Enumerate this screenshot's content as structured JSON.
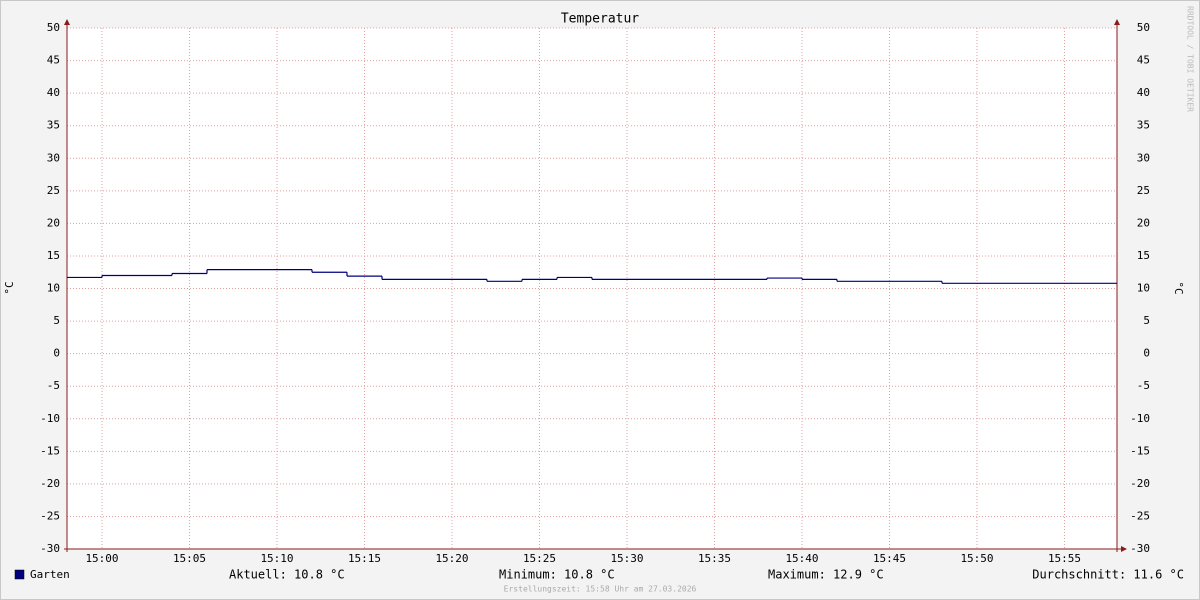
{
  "chart_data": {
    "type": "step",
    "title": "Temperatur",
    "y_label": "°C",
    "watermark": "RRDTOOL / TOBI OETIKER",
    "x": [
      "14:58",
      "15:00",
      "15:04",
      "15:06",
      "15:12",
      "15:14",
      "15:16",
      "15:22",
      "15:24",
      "15:26",
      "15:28",
      "15:38",
      "15:40",
      "15:42",
      "15:48"
    ],
    "xlim": [
      "14:58",
      "15:58"
    ],
    "xticks": [
      "15:00",
      "15:05",
      "15:10",
      "15:15",
      "15:20",
      "15:25",
      "15:30",
      "15:35",
      "15:40",
      "15:45",
      "15:50",
      "15:55"
    ],
    "ylim": [
      -30,
      50
    ],
    "yticks": [
      -30,
      -25,
      -20,
      -15,
      -10,
      -5,
      0,
      5,
      10,
      15,
      20,
      25,
      30,
      35,
      40,
      45,
      50
    ],
    "grid": true,
    "series": [
      {
        "name": "Garten",
        "color": "#00007f",
        "values": [
          11.7,
          12.0,
          12.3,
          12.9,
          12.5,
          11.9,
          11.4,
          11.1,
          11.4,
          11.7,
          11.4,
          11.6,
          11.4,
          11.1,
          10.8
        ]
      }
    ],
    "stats": [
      "Aktuell: 10.8 °C",
      "Minimum: 10.8 °C",
      "Maximum: 12.9 °C",
      "Durchschnitt: 11.6 °C"
    ],
    "footer": "Erstellungszeit: 15:58 Uhr am 27.03.2026"
  }
}
